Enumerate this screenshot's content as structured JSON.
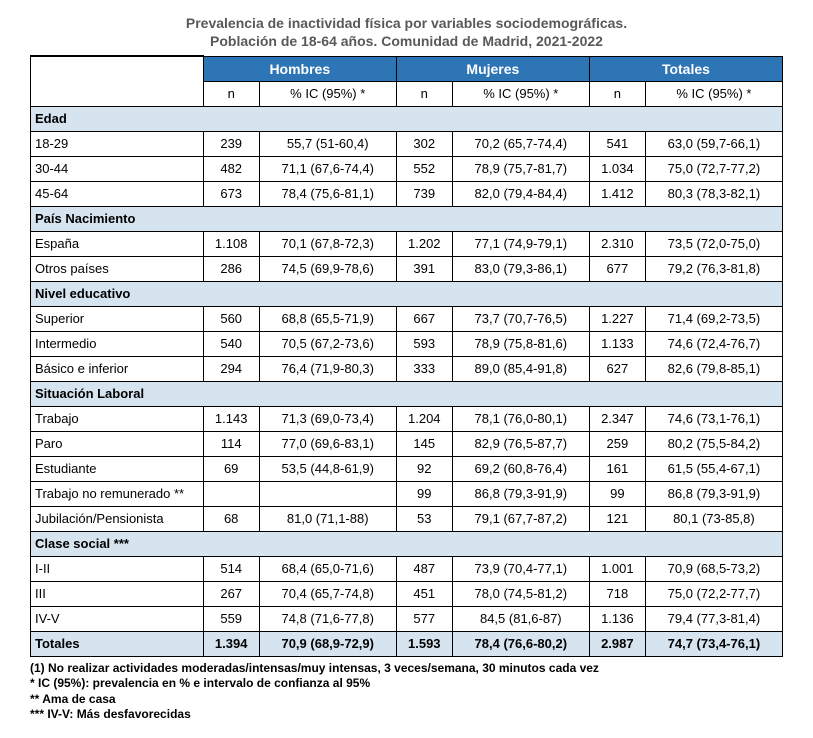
{
  "title1": "Prevalencia de inactividad física por variables sociodemográficas.",
  "title2": "Población de 18-64 años. Comunidad de Madrid, 2021-2022",
  "group_headers": [
    "Hombres",
    "Mujeres",
    "Totales"
  ],
  "sub_headers": [
    "n",
    "% IC (95%) *"
  ],
  "sections": [
    {
      "name": "Edad",
      "rows": [
        {
          "label": "18-29",
          "h_n": "239",
          "h_p": "55,7 (51-60,4)",
          "m_n": "302",
          "m_p": "70,2 (65,7-74,4)",
          "t_n": "541",
          "t_p": "63,0 (59,7-66,1)"
        },
        {
          "label": "30-44",
          "h_n": "482",
          "h_p": "71,1 (67,6-74,4)",
          "m_n": "552",
          "m_p": "78,9 (75,7-81,7)",
          "t_n": "1.034",
          "t_p": "75,0 (72,7-77,2)"
        },
        {
          "label": "45-64",
          "h_n": "673",
          "h_p": "78,4 (75,6-81,1)",
          "m_n": "739",
          "m_p": "82,0 (79,4-84,4)",
          "t_n": "1.412",
          "t_p": "80,3 (78,3-82,1)"
        }
      ]
    },
    {
      "name": "País Nacimiento",
      "rows": [
        {
          "label": "España",
          "h_n": "1.108",
          "h_p": "70,1 (67,8-72,3)",
          "m_n": "1.202",
          "m_p": "77,1 (74,9-79,1)",
          "t_n": "2.310",
          "t_p": "73,5 (72,0-75,0)"
        },
        {
          "label": "Otros países",
          "h_n": "286",
          "h_p": "74,5 (69,9-78,6)",
          "m_n": "391",
          "m_p": "83,0 (79,3-86,1)",
          "t_n": "677",
          "t_p": "79,2 (76,3-81,8)"
        }
      ]
    },
    {
      "name": "Nivel educativo",
      "rows": [
        {
          "label": "Superior",
          "h_n": "560",
          "h_p": "68,8 (65,5-71,9)",
          "m_n": "667",
          "m_p": "73,7 (70,7-76,5)",
          "t_n": "1.227",
          "t_p": "71,4 (69,2-73,5)"
        },
        {
          "label": "Intermedio",
          "h_n": "540",
          "h_p": "70,5 (67,2-73,6)",
          "m_n": "593",
          "m_p": "78,9 (75,8-81,6)",
          "t_n": "1.133",
          "t_p": "74,6 (72,4-76,7)"
        },
        {
          "label": "Básico e inferior",
          "h_n": "294",
          "h_p": "76,4 (71,9-80,3)",
          "m_n": "333",
          "m_p": "89,0 (85,4-91,8)",
          "t_n": "627",
          "t_p": "82,6 (79,8-85,1)"
        }
      ]
    },
    {
      "name": "Situación Laboral",
      "rows": [
        {
          "label": "Trabajo",
          "h_n": "1.143",
          "h_p": "71,3 (69,0-73,4)",
          "m_n": "1.204",
          "m_p": "78,1 (76,0-80,1)",
          "t_n": "2.347",
          "t_p": "74,6 (73,1-76,1)"
        },
        {
          "label": "Paro",
          "h_n": "114",
          "h_p": "77,0 (69,6-83,1)",
          "m_n": "145",
          "m_p": "82,9 (76,5-87,7)",
          "t_n": "259",
          "t_p": "80,2 (75,5-84,2)"
        },
        {
          "label": "Estudiante",
          "h_n": "69",
          "h_p": "53,5 (44,8-61,9)",
          "m_n": "92",
          "m_p": "69,2 (60,8-76,4)",
          "t_n": "161",
          "t_p": "61,5 (55,4-67,1)"
        },
        {
          "label": "Trabajo no remunerado **",
          "h_n": "",
          "h_p": "",
          "m_n": "99",
          "m_p": "86,8 (79,3-91,9)",
          "t_n": "99",
          "t_p": "86,8 (79,3-91,9)"
        },
        {
          "label": "Jubilación/Pensionista",
          "h_n": "68",
          "h_p": "81,0 (71,1-88)",
          "m_n": "53",
          "m_p": "79,1 (67,7-87,2)",
          "t_n": "121",
          "t_p": "80,1 (73-85,8)"
        }
      ]
    },
    {
      "name": "Clase social ***",
      "rows": [
        {
          "label": "I-II",
          "h_n": "514",
          "h_p": "68,4 (65,0-71,6)",
          "m_n": "487",
          "m_p": "73,9 (70,4-77,1)",
          "t_n": "1.001",
          "t_p": "70,9 (68,5-73,2)"
        },
        {
          "label": "III",
          "h_n": "267",
          "h_p": "70,4 (65,7-74,8)",
          "m_n": "451",
          "m_p": "78,0 (74,5-81,2)",
          "t_n": "718",
          "t_p": "75,0 (72,2-77,7)"
        },
        {
          "label": "IV-V",
          "h_n": "559",
          "h_p": "74,8 (71,6-77,8)",
          "m_n": "577",
          "m_p": "84,5 (81,6-87)",
          "t_n": "1.136",
          "t_p": "79,4 (77,3-81,4)"
        }
      ]
    }
  ],
  "totals": {
    "label": "Totales",
    "h_n": "1.394",
    "h_p": "70,9 (68,9-72,9)",
    "m_n": "1.593",
    "m_p": "78,4 (76,6-80,2)",
    "t_n": "2.987",
    "t_p": "74,7 (73,4-76,1)"
  },
  "footnotes": [
    "(1) No realizar actividades moderadas/intensas/muy intensas, 3 veces/semana, 30 minutos cada vez",
    "* IC (95%): prevalencia en % e intervalo de confianza al 95%",
    "** Ama de casa",
    "*** IV-V: Más desfavorecidas"
  ]
}
